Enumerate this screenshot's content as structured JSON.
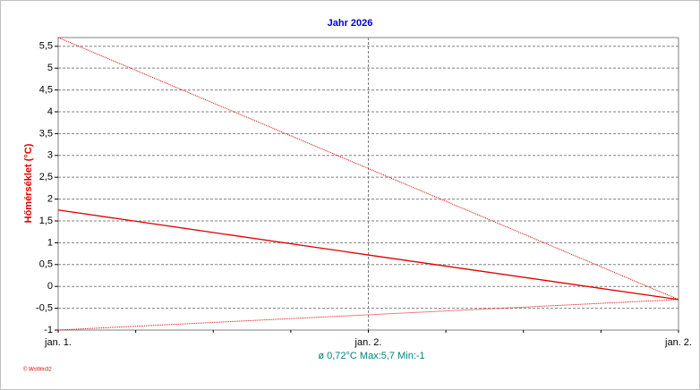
{
  "chart_data": {
    "type": "line",
    "title": "Jahr 2026",
    "y_label": "Hőmérséklet (°C)",
    "footer": "ø 0,72°C  Max:5,7  Min:-1",
    "credit": "© WsWin32",
    "categories": [
      "jan. 1.",
      "jan. 2.",
      "jan. 2."
    ],
    "series": [
      {
        "color": "#dd0000",
        "style": "dotted",
        "values": [
          5.7,
          2.7,
          -0.3
        ]
      },
      {
        "color": "#dd0000",
        "style": "solid",
        "values": [
          1.75,
          0.72,
          -0.3
        ]
      },
      {
        "color": "#dd0000",
        "style": "dotted",
        "values": [
          -1,
          -0.65,
          -0.3
        ]
      }
    ],
    "ylim": [
      -1,
      5.7
    ],
    "yticks": [
      -1,
      {
        "value": -0.5,
        "label": "-0,5"
      },
      0,
      {
        "value": 0.5,
        "label": "0,5"
      },
      1,
      {
        "value": 1.5,
        "label": "1,5"
      },
      2,
      {
        "value": 2.5,
        "label": "2,5"
      },
      3,
      {
        "value": 3.5,
        "label": "3,5"
      },
      4,
      {
        "value": 4.5,
        "label": "4,5"
      },
      5,
      {
        "value": 5.5,
        "label": "5,5"
      }
    ],
    "grid": true
  }
}
